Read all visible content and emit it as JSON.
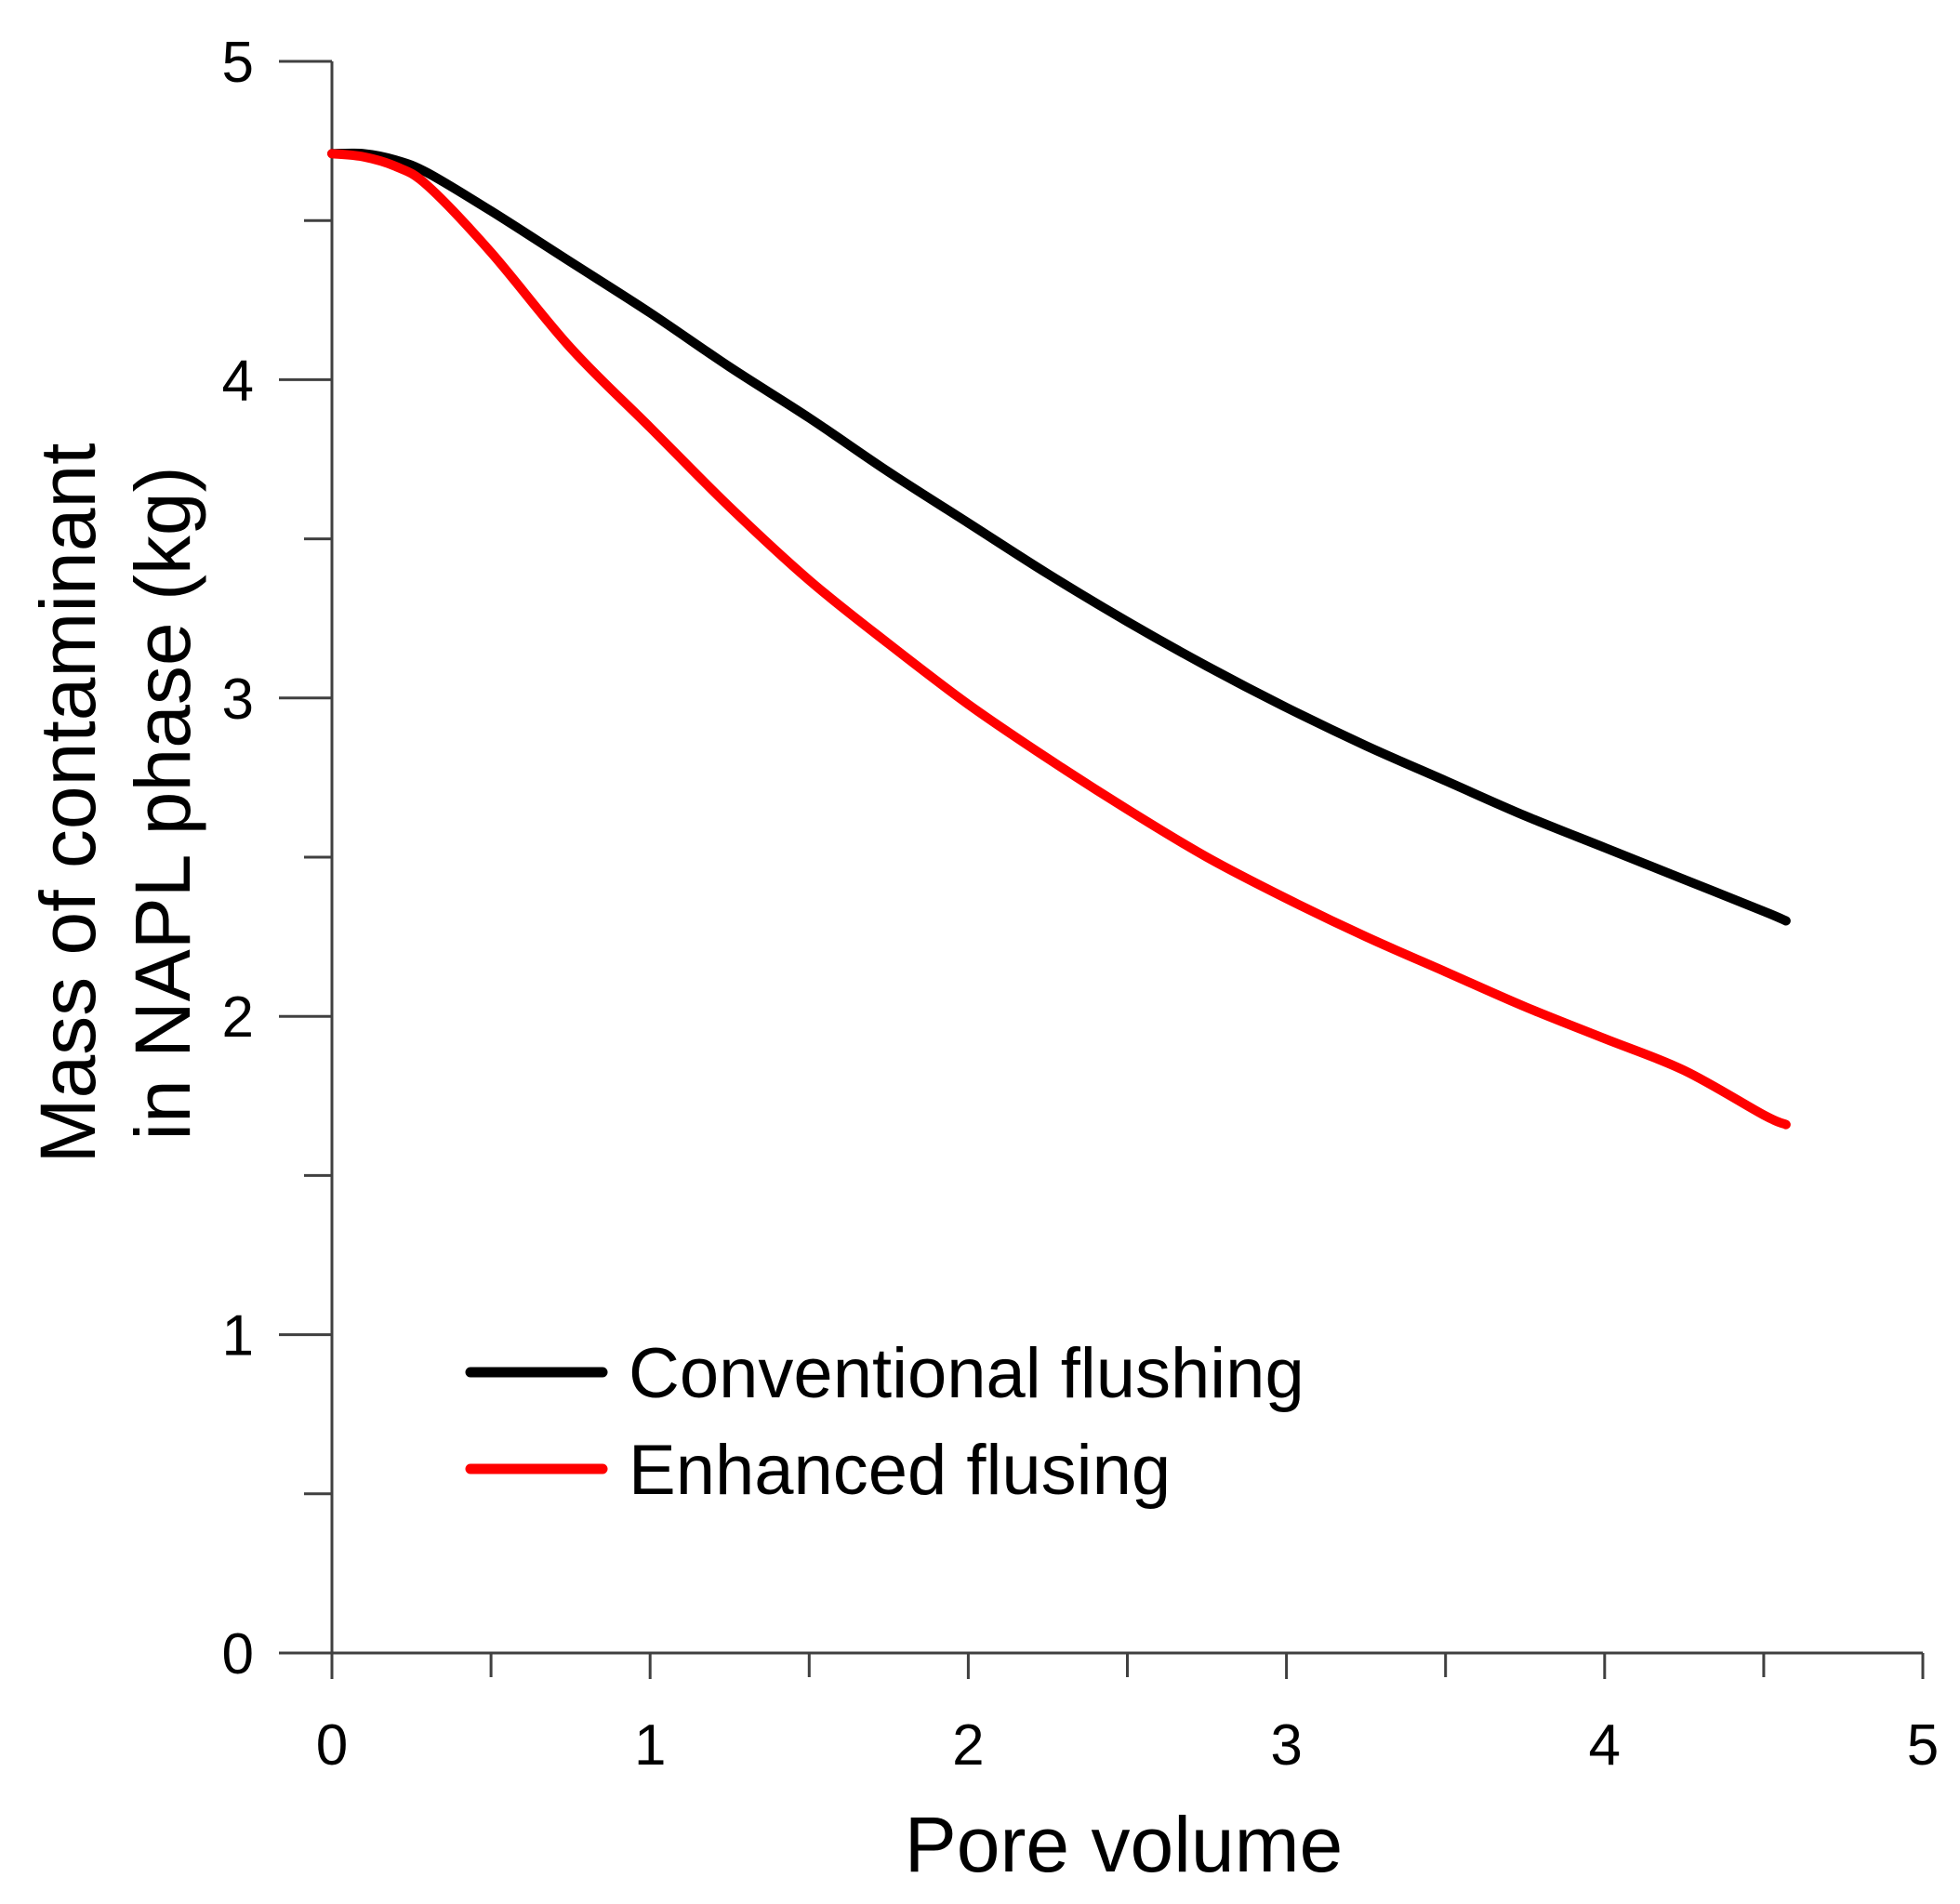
{
  "chart_data": {
    "type": "line",
    "title": "",
    "xlabel": "Pore volume",
    "ylabel_lines": [
      "Mass of contaminant",
      "in NAPL phase (kg)"
    ],
    "xlim": [
      0,
      5
    ],
    "ylim": [
      0,
      5
    ],
    "x_major_ticks": [
      0,
      1,
      2,
      3,
      4,
      5
    ],
    "x_tick_labels": [
      "0",
      "1",
      "2",
      "3",
      "4",
      "5"
    ],
    "x_minor_ticks": [
      0.5,
      1.5,
      2.5,
      3.5,
      4.5
    ],
    "y_major_ticks": [
      0,
      1,
      2,
      3,
      4,
      5
    ],
    "y_tick_labels": [
      "0",
      "1",
      "2",
      "3",
      "4",
      "5"
    ],
    "y_minor_ticks": [
      0.5,
      1.5,
      2.5,
      3.5,
      4.5
    ],
    "grid": false,
    "legend_position": "lower-left",
    "series": [
      {
        "name": "Conventional flushing",
        "color": "#000000",
        "x": [
          0,
          0.1,
          0.2,
          0.3,
          0.5,
          0.75,
          1.0,
          1.25,
          1.5,
          1.75,
          2.0,
          2.25,
          2.5,
          2.75,
          3.0,
          3.25,
          3.5,
          3.75,
          4.0,
          4.25,
          4.5,
          4.57
        ],
        "y": [
          4.71,
          4.71,
          4.69,
          4.65,
          4.53,
          4.37,
          4.21,
          4.04,
          3.88,
          3.71,
          3.55,
          3.39,
          3.24,
          3.1,
          2.97,
          2.85,
          2.74,
          2.63,
          2.53,
          2.43,
          2.33,
          2.3
        ]
      },
      {
        "name": "Enhanced flusing",
        "color": "#ff0000",
        "x": [
          0,
          0.1,
          0.2,
          0.3,
          0.5,
          0.75,
          1.0,
          1.25,
          1.5,
          1.75,
          2.0,
          2.25,
          2.5,
          2.75,
          3.0,
          3.25,
          3.5,
          3.75,
          4.0,
          4.25,
          4.5,
          4.57
        ],
        "y": [
          4.71,
          4.7,
          4.67,
          4.61,
          4.4,
          4.1,
          3.85,
          3.6,
          3.37,
          3.17,
          2.98,
          2.81,
          2.65,
          2.5,
          2.37,
          2.25,
          2.14,
          2.03,
          1.93,
          1.83,
          1.69,
          1.66
        ]
      }
    ]
  }
}
